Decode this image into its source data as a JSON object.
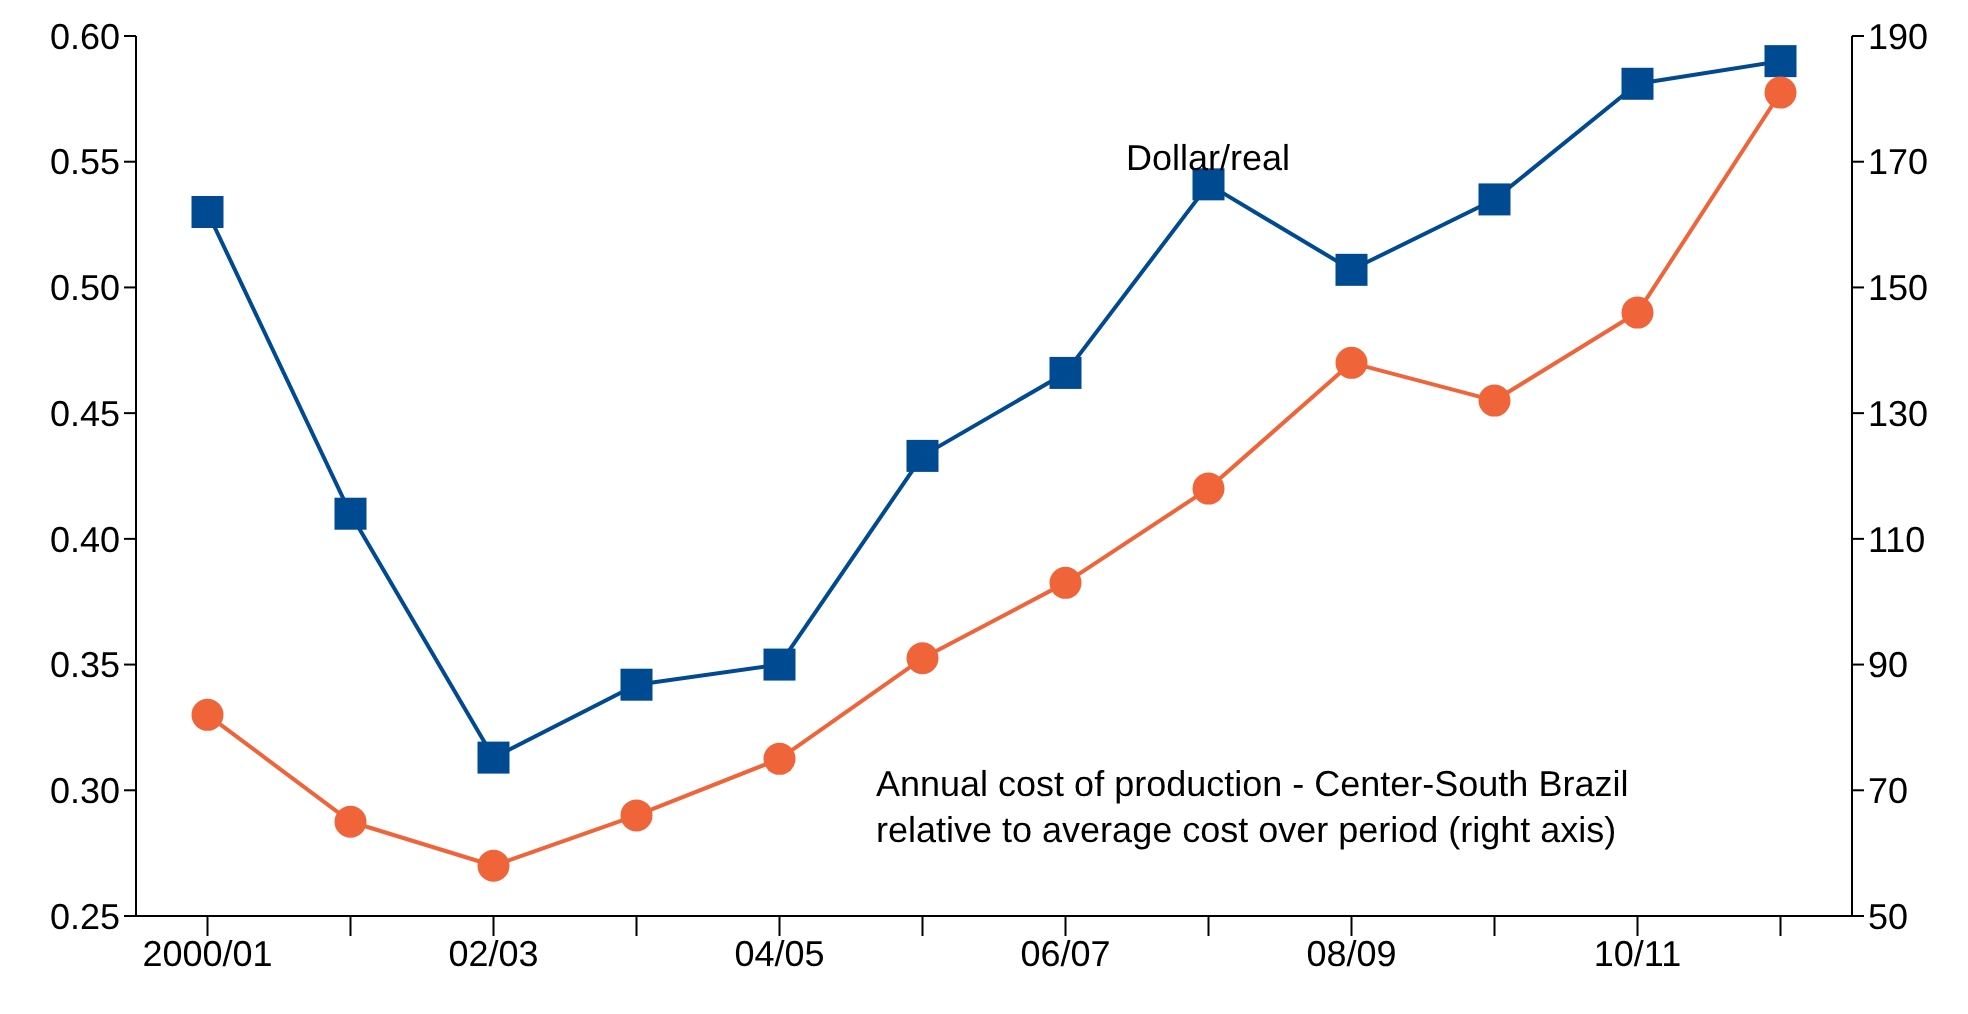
{
  "chart_data": {
    "type": "line",
    "categories": [
      "2000/01",
      null,
      "02/03",
      null,
      "04/05",
      null,
      "06/07",
      null,
      "08/09",
      null,
      "10/11",
      null
    ],
    "series": [
      {
        "name": "Dollar/real",
        "color": "#004a91",
        "marker": "square",
        "values": [
          0.53,
          0.41,
          0.313,
          0.342,
          0.35,
          0.433,
          0.466,
          0.541,
          0.507,
          0.535,
          0.581,
          0.59
        ]
      },
      {
        "name": "Annual cost of production - Center-South Brazil\nrelative to average cost over period (right axis)",
        "color": "#f0643a",
        "marker": "circle",
        "axis": "y2",
        "values": [
          82,
          65,
          58,
          66,
          75,
          91,
          103,
          118,
          138,
          132,
          146,
          181
        ]
      }
    ],
    "ylim": [
      0.25,
      0.6
    ],
    "yticks": [
      0.25,
      {
        "value": 0.3,
        "label": "0.30"
      },
      0.35,
      {
        "value": 0.4,
        "label": "0.40"
      },
      0.45,
      {
        "value": 0.5,
        "label": "0.50"
      },
      0.55,
      {
        "value": 0.6,
        "label": "0.60"
      }
    ],
    "y2lim": [
      50,
      190
    ],
    "y2ticks": [
      50,
      70,
      90,
      110,
      130,
      150,
      170,
      190
    ],
    "grid": false
  }
}
